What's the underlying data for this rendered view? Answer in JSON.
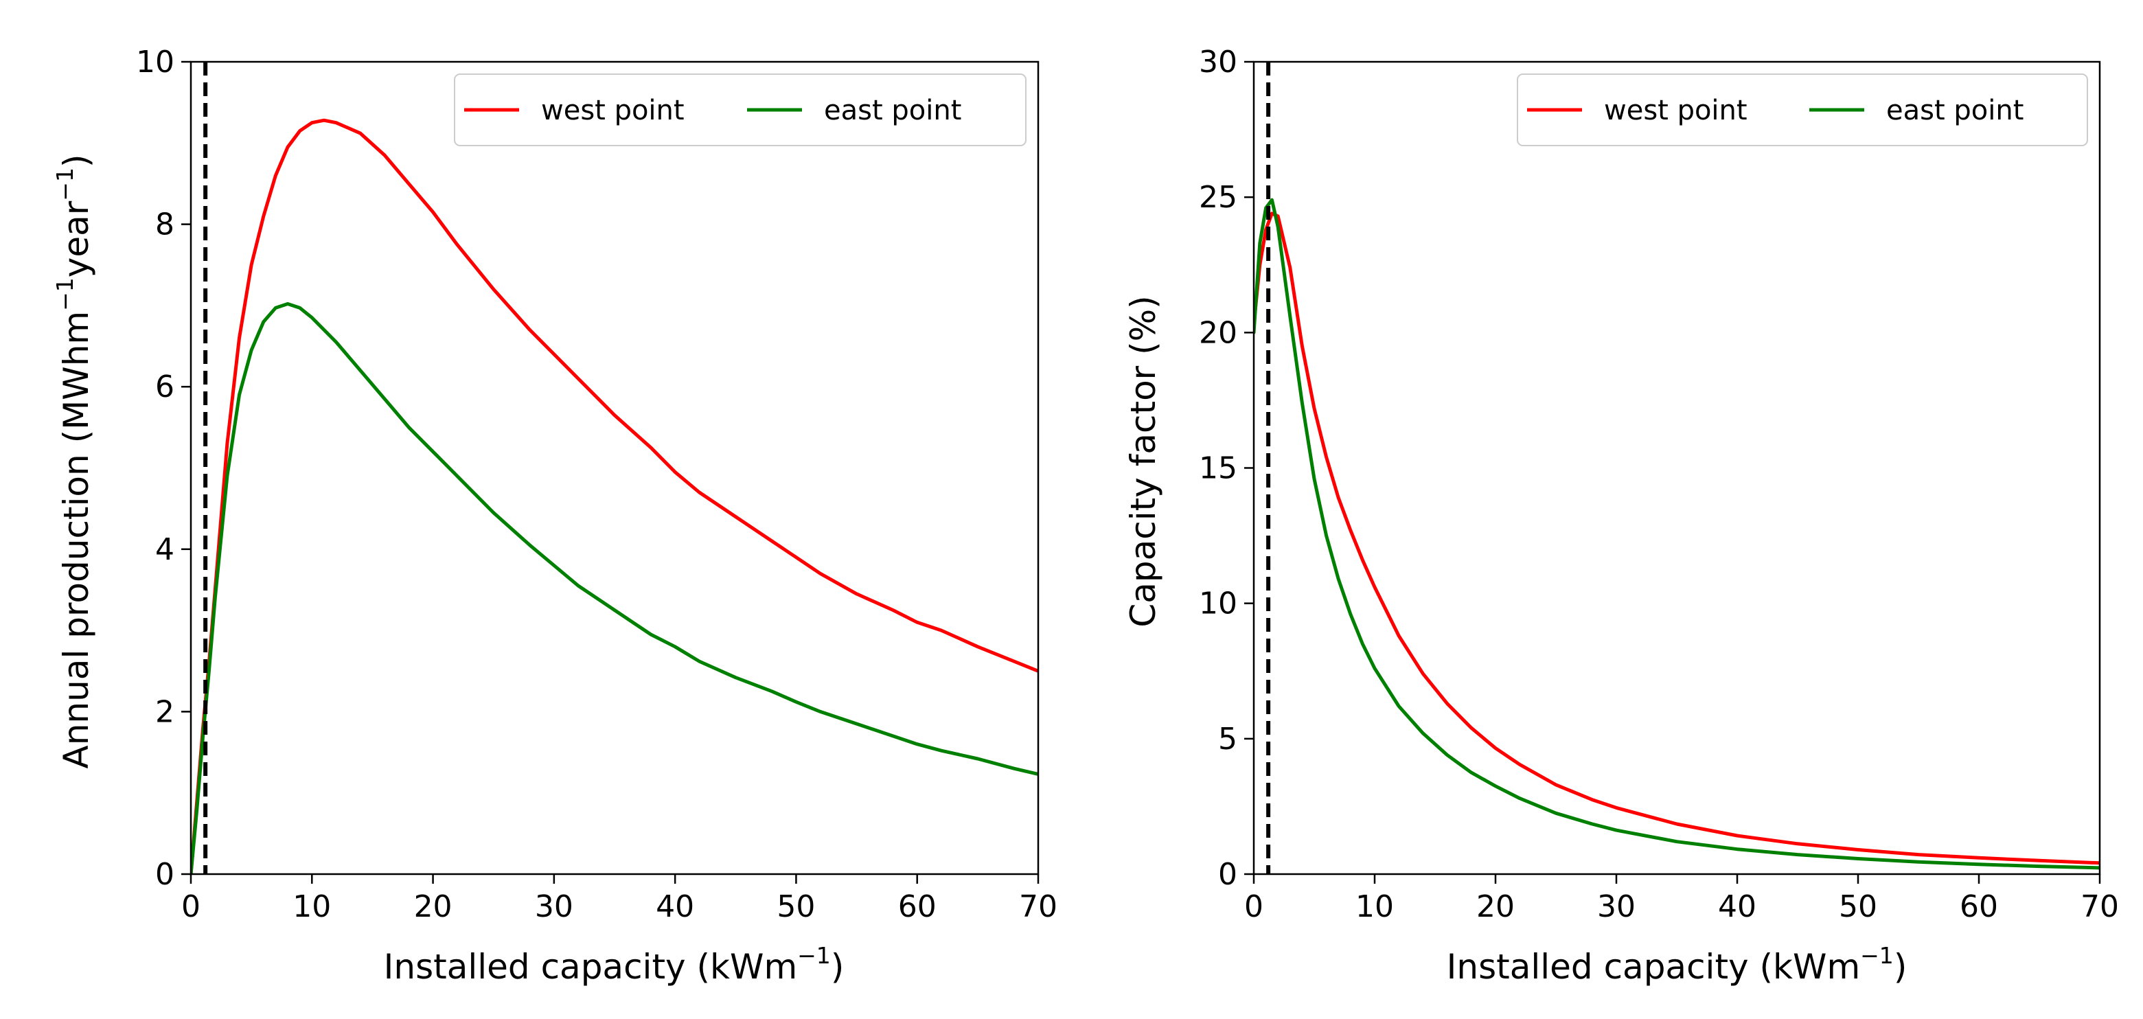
{
  "chart_data": [
    {
      "type": "line",
      "xlabel": "Installed capacity (kWm",
      "xlabel_sup": "−1",
      "xlabel_suffix": ")",
      "ylabel": "Annual production (MWhm",
      "ylabel_sup1": "−1",
      "ylabel_mid": "year",
      "ylabel_sup2": "−1",
      "ylabel_suffix": ")",
      "xlim": [
        0,
        70
      ],
      "ylim": [
        0,
        10
      ],
      "xticks": [
        0,
        10,
        20,
        30,
        40,
        50,
        60,
        70
      ],
      "xtick_labels": [
        "0",
        "10",
        "20",
        "30",
        "40",
        "50",
        "60",
        "70"
      ],
      "yticks": [
        0,
        2,
        4,
        6,
        8,
        10
      ],
      "ytick_labels": [
        "0",
        "2",
        "4",
        "6",
        "8",
        "10"
      ],
      "grid": false,
      "legend": {
        "placement": "top-right",
        "columns": 2
      },
      "vline": {
        "x": 1.2,
        "style": "dashed",
        "color": "#000000"
      },
      "series": [
        {
          "name": "west point",
          "color": "#ff0000",
          "x": [
            0,
            0.5,
            1,
            1.5,
            2,
            3,
            4,
            5,
            6,
            7,
            8,
            9,
            10,
            11,
            12,
            14,
            16,
            18,
            20,
            22,
            25,
            28,
            30,
            32,
            35,
            38,
            40,
            42,
            45,
            48,
            50,
            52,
            55,
            58,
            60,
            62,
            65,
            68,
            70
          ],
          "y": [
            0,
            0.9,
            1.8,
            2.6,
            3.5,
            5.3,
            6.6,
            7.5,
            8.1,
            8.6,
            8.95,
            9.15,
            9.25,
            9.28,
            9.25,
            9.12,
            8.85,
            8.5,
            8.15,
            7.75,
            7.2,
            6.7,
            6.4,
            6.1,
            5.65,
            5.25,
            4.95,
            4.7,
            4.4,
            4.1,
            3.9,
            3.7,
            3.45,
            3.25,
            3.1,
            3.0,
            2.8,
            2.62,
            2.5
          ]
        },
        {
          "name": "east point",
          "color": "#008000",
          "x": [
            0,
            0.5,
            1,
            1.5,
            2,
            3,
            4,
            5,
            6,
            7,
            8,
            9,
            10,
            11,
            12,
            14,
            16,
            18,
            20,
            22,
            25,
            28,
            30,
            32,
            35,
            38,
            40,
            42,
            45,
            48,
            50,
            52,
            55,
            58,
            60,
            62,
            65,
            68,
            70
          ],
          "y": [
            0,
            0.8,
            1.7,
            2.5,
            3.4,
            4.9,
            5.9,
            6.45,
            6.8,
            6.97,
            7.02,
            6.97,
            6.85,
            6.7,
            6.55,
            6.2,
            5.85,
            5.5,
            5.2,
            4.9,
            4.45,
            4.05,
            3.8,
            3.55,
            3.25,
            2.95,
            2.8,
            2.62,
            2.42,
            2.25,
            2.12,
            2.0,
            1.85,
            1.7,
            1.6,
            1.52,
            1.42,
            1.3,
            1.23
          ]
        }
      ]
    },
    {
      "type": "line",
      "xlabel": "Installed capacity (kWm",
      "xlabel_sup": "−1",
      "xlabel_suffix": ")",
      "ylabel": "Capacity factor (%)",
      "xlim": [
        0,
        70
      ],
      "ylim": [
        0,
        30
      ],
      "xticks": [
        0,
        10,
        20,
        30,
        40,
        50,
        60,
        70
      ],
      "xtick_labels": [
        "0",
        "10",
        "20",
        "30",
        "40",
        "50",
        "60",
        "70"
      ],
      "yticks": [
        0,
        5,
        10,
        15,
        20,
        25,
        30
      ],
      "ytick_labels": [
        "0",
        "5",
        "10",
        "15",
        "20",
        "25",
        "30"
      ],
      "grid": false,
      "legend": {
        "placement": "top-right",
        "columns": 2
      },
      "vline": {
        "x": 1.2,
        "style": "dashed",
        "color": "#000000"
      },
      "series": [
        {
          "name": "west point",
          "color": "#ff0000",
          "x": [
            0,
            0.5,
            1,
            1.5,
            2,
            3,
            4,
            5,
            6,
            7,
            8,
            9,
            10,
            12,
            14,
            16,
            18,
            20,
            22,
            25,
            28,
            30,
            35,
            40,
            45,
            50,
            55,
            60,
            65,
            70
          ],
          "y": [
            20.3,
            22.5,
            23.8,
            24.4,
            24.3,
            22.4,
            19.5,
            17.2,
            15.4,
            13.9,
            12.7,
            11.6,
            10.6,
            8.8,
            7.4,
            6.3,
            5.4,
            4.65,
            4.05,
            3.3,
            2.75,
            2.45,
            1.85,
            1.42,
            1.12,
            0.9,
            0.72,
            0.6,
            0.5,
            0.41
          ]
        },
        {
          "name": "east point",
          "color": "#008000",
          "x": [
            0,
            0.5,
            1,
            1.5,
            2,
            3,
            4,
            5,
            6,
            7,
            8,
            9,
            10,
            12,
            14,
            16,
            18,
            20,
            22,
            25,
            28,
            30,
            35,
            40,
            45,
            50,
            55,
            60,
            65,
            70
          ],
          "y": [
            20.0,
            23.3,
            24.6,
            24.9,
            23.9,
            20.6,
            17.4,
            14.6,
            12.5,
            10.9,
            9.6,
            8.5,
            7.6,
            6.2,
            5.2,
            4.4,
            3.75,
            3.25,
            2.8,
            2.25,
            1.85,
            1.62,
            1.2,
            0.92,
            0.72,
            0.57,
            0.45,
            0.36,
            0.29,
            0.23
          ]
        }
      ]
    }
  ]
}
